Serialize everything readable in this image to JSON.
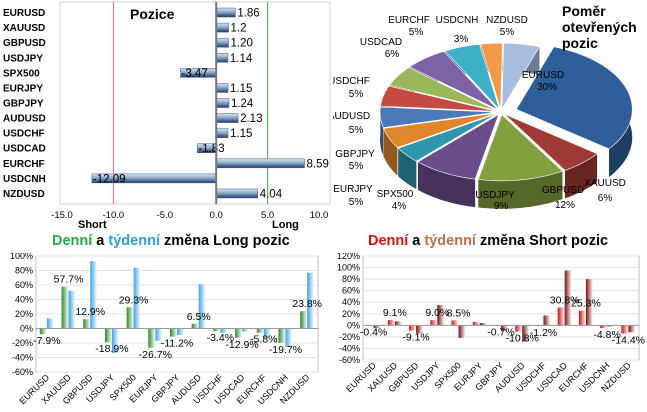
{
  "colors": {
    "bar_dark": "#1c3b68",
    "bar_light": "#d7e5f4",
    "short_line": "#e07070",
    "long_line": "#44aa44",
    "zero_line": "#777777",
    "long_daily": "#2d8a2d",
    "long_weekly": "#3fa2e6",
    "short_daily": "#cc1111",
    "short_weekly": "#7a1010"
  },
  "chart_data": [
    {
      "id": "positions",
      "type": "bar",
      "orientation": "horizontal",
      "title": "Pozice",
      "categories": [
        "EURUSD",
        "XAUUSD",
        "GBPUSD",
        "USDJPY",
        "SPX500",
        "EURJPY",
        "GBPJPY",
        "AUDUSD",
        "USDCHF",
        "USDCAD",
        "EURCHF",
        "USDCNH",
        "NZDUSD"
      ],
      "values": [
        1.86,
        1.2,
        1.2,
        1.14,
        -3.47,
        1.15,
        1.24,
        2.13,
        1.15,
        -1.83,
        8.59,
        -12.09,
        4.04
      ],
      "value_labels": [
        "1.86",
        "1.2",
        "1.20",
        "1.14",
        "-3.47",
        "1.15",
        "1.24",
        "2.13",
        "1.15",
        "-1.83",
        "8.59",
        "-12.09",
        "4.04"
      ],
      "xlim": [
        -15,
        10
      ],
      "ticks": [
        "-15.0",
        "-10.0",
        "-5.0",
        "0.0",
        "5.0",
        "10.0"
      ],
      "tick_values": [
        -15,
        -10,
        -5,
        0,
        5,
        10
      ],
      "short_label": "Short",
      "long_label": "Long"
    },
    {
      "id": "open-ratio",
      "type": "pie",
      "title_lines": [
        "Poměr",
        "otevřených",
        "pozic"
      ],
      "slices": [
        {
          "label": "EURUSD",
          "value": 30,
          "text": "30%",
          "color": "#2e5f9a"
        },
        {
          "label": "XAUUSD",
          "value": 6,
          "text": "6%",
          "color": "#a03a36"
        },
        {
          "label": "GBPUSD",
          "value": 12,
          "text": "12%",
          "color": "#82a03e"
        },
        {
          "label": "USDJPY",
          "value": 9,
          "text": "9%",
          "color": "#6a4e8c"
        },
        {
          "label": "SPX500",
          "value": 4,
          "text": "4%",
          "color": "#2f97ad"
        },
        {
          "label": "EURJPY",
          "value": 5,
          "text": "5%",
          "color": "#e0872e"
        },
        {
          "label": "GBPJPY",
          "value": 5,
          "text": "5%",
          "color": "#4a78b8"
        },
        {
          "label": "AUDUSD",
          "value": 5,
          "text": "5%",
          "color": "#c44a44"
        },
        {
          "label": "USDCHF",
          "value": 5,
          "text": "5%",
          "color": "#9ab85a"
        },
        {
          "label": "USDCAD",
          "value": 6,
          "text": "6%",
          "color": "#7d62a6"
        },
        {
          "label": "EURCHF",
          "value": 5,
          "text": "5%",
          "color": "#3db0c8"
        },
        {
          "label": "USDCNH",
          "value": 3,
          "text": "3%",
          "color": "#f09a4a"
        },
        {
          "label": "NZDUSD",
          "value": 5,
          "text": "5%",
          "color": "#a9bde0"
        }
      ]
    },
    {
      "id": "long-change",
      "type": "bar",
      "title_parts": [
        "Denní",
        " a ",
        "týdenní",
        " změna Long pozic"
      ],
      "categories": [
        "EURUSD",
        "XAUUSD",
        "GBPUSD",
        "USDJPY",
        "SPX500",
        "EURJPY",
        "GBPJPY",
        "AUDUSD",
        "USDCHF",
        "USDCAD",
        "EURCHF",
        "USDCNH",
        "NZDUSD"
      ],
      "series": [
        {
          "values": [
            -7.9,
            57.7,
            12.9,
            -18.9,
            29.3,
            -26.7,
            -11.2,
            6.5,
            -3.4,
            -12.9,
            -5.8,
            -19.7,
            23.8
          ]
        },
        {
          "values": [
            14,
            52,
            93,
            -34,
            84,
            -17,
            -9,
            61,
            -6,
            -4,
            -13,
            -25,
            77
          ]
        }
      ],
      "value_labels": [
        "-7.9%",
        "57.7%",
        "12.9%",
        "-18.9%",
        "29.3%",
        "-26.7%",
        "-11.2%",
        "6.5%",
        "-3.4%",
        "-12.9%",
        "-5.8%",
        "-19.7%",
        "23.8%"
      ],
      "ylim": [
        -60,
        100
      ],
      "ticks": [
        "-60%",
        "-40%",
        "-20%",
        "0%",
        "20%",
        "40%",
        "60%",
        "80%",
        "100%"
      ],
      "tick_values": [
        -60,
        -40,
        -20,
        0,
        20,
        40,
        60,
        80,
        100
      ]
    },
    {
      "id": "short-change",
      "type": "bar",
      "title_parts": [
        "Denní",
        " a ",
        "týdenní",
        " změna Short pozic"
      ],
      "categories": [
        "EURUSD",
        "XAUUSD",
        "GBPUSD",
        "USDJPY",
        "SPX500",
        "EURJPY",
        "GBPJPY",
        "AUDUSD",
        "USDCHF",
        "USDCAD",
        "EURCHF",
        "USDCNH",
        "NZDUSD"
      ],
      "series": [
        {
          "values": [
            -0.4,
            9.1,
            -9.1,
            9.0,
            8.5,
            6.0,
            -0.7,
            -10.8,
            -1.2,
            30.8,
            25.3,
            -4.8,
            -14.4
          ]
        },
        {
          "values": [
            -5,
            7,
            -14,
            35,
            -22,
            4,
            -10,
            -28,
            17,
            95,
            80,
            -2,
            -12
          ]
        }
      ],
      "value_labels": [
        "-0.4%",
        "9.1%",
        "-9.1%",
        "9.0%",
        "8.5%",
        "",
        "-0.7%",
        "-10.8%",
        "-1.2%",
        "30.8%",
        "25.3%",
        "-4.8%",
        "-14.4%"
      ],
      "ylim": [
        -60,
        120
      ],
      "ticks": [
        "-60%",
        "-40%",
        "-20%",
        "0%",
        "20%",
        "40%",
        "60%",
        "80%",
        "100%",
        "120%"
      ],
      "tick_values": [
        -60,
        -40,
        -20,
        0,
        20,
        40,
        60,
        80,
        100,
        120
      ]
    }
  ]
}
